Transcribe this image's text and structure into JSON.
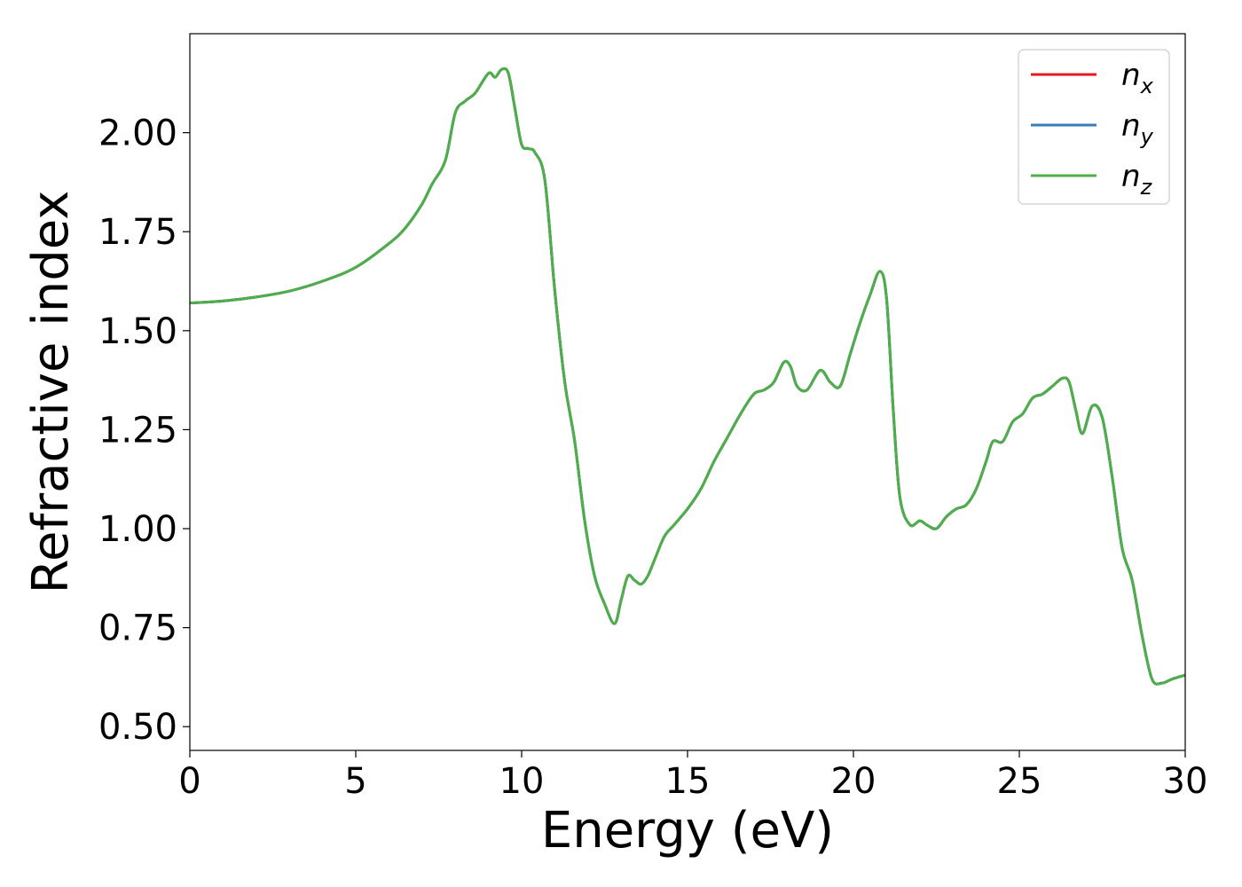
{
  "chart_data": {
    "type": "line",
    "xlabel": "Energy (eV)",
    "ylabel": "Refractive index",
    "xlim": [
      0,
      30
    ],
    "ylim": [
      0.44,
      2.25
    ],
    "xticks": [
      0,
      5,
      10,
      15,
      20,
      25,
      30
    ],
    "xtick_labels": [
      "0",
      "5",
      "10",
      "15",
      "20",
      "25",
      "30"
    ],
    "yticks": [
      0.5,
      0.75,
      1.0,
      1.25,
      1.5,
      1.75,
      2.0
    ],
    "ytick_labels": [
      "0.50",
      "0.75",
      "1.00",
      "1.25",
      "1.50",
      "1.75",
      "2.00"
    ],
    "grid": false,
    "legend_position": "top-right",
    "series": [
      {
        "name": "n",
        "subscript": "x",
        "color": "#e41a1c",
        "x": [
          0,
          1,
          2,
          3,
          4,
          5,
          6,
          6.5,
          7,
          7.3,
          7.7,
          8,
          8.3,
          8.6,
          9,
          9.2,
          9.4,
          9.6,
          9.8,
          10,
          10.2,
          10.4,
          10.7,
          11,
          11.3,
          11.6,
          11.9,
          12.2,
          12.5,
          12.8,
          13,
          13.2,
          13.4,
          13.6,
          13.8,
          14,
          14.3,
          14.6,
          15,
          15.4,
          15.8,
          16.2,
          16.6,
          17,
          17.3,
          17.6,
          17.9,
          18.1,
          18.3,
          18.6,
          19,
          19.3,
          19.6,
          19.9,
          20.2,
          20.5,
          20.8,
          21,
          21.2,
          21.4,
          21.7,
          22,
          22.2,
          22.5,
          22.8,
          23.1,
          23.4,
          23.7,
          24,
          24.2,
          24.5,
          24.8,
          25.1,
          25.4,
          25.7,
          26,
          26.3,
          26.5,
          26.7,
          26.9,
          27.2,
          27.5,
          27.8,
          28.1,
          28.4,
          28.7,
          29,
          29.3,
          29.6,
          30
        ],
        "values": [
          1.57,
          1.575,
          1.585,
          1.6,
          1.625,
          1.66,
          1.72,
          1.76,
          1.82,
          1.87,
          1.93,
          2.05,
          2.08,
          2.1,
          2.15,
          2.14,
          2.16,
          2.15,
          2.06,
          1.97,
          1.96,
          1.95,
          1.88,
          1.6,
          1.37,
          1.22,
          1.02,
          0.88,
          0.81,
          0.76,
          0.82,
          0.88,
          0.87,
          0.86,
          0.88,
          0.92,
          0.98,
          1.01,
          1.05,
          1.1,
          1.17,
          1.23,
          1.29,
          1.34,
          1.35,
          1.37,
          1.42,
          1.41,
          1.36,
          1.35,
          1.4,
          1.37,
          1.36,
          1.44,
          1.52,
          1.59,
          1.65,
          1.58,
          1.3,
          1.08,
          1.01,
          1.02,
          1.01,
          1.0,
          1.03,
          1.05,
          1.06,
          1.1,
          1.17,
          1.22,
          1.22,
          1.27,
          1.29,
          1.33,
          1.34,
          1.36,
          1.38,
          1.37,
          1.3,
          1.24,
          1.31,
          1.28,
          1.13,
          0.95,
          0.87,
          0.73,
          0.62,
          0.61,
          0.62,
          0.63
        ]
      },
      {
        "name": "n",
        "subscript": "y",
        "color": "#377eb8",
        "x": [
          0,
          1,
          2,
          3,
          4,
          5,
          6,
          6.5,
          7,
          7.3,
          7.7,
          8,
          8.3,
          8.6,
          9,
          9.2,
          9.4,
          9.6,
          9.8,
          10,
          10.2,
          10.4,
          10.7,
          11,
          11.3,
          11.6,
          11.9,
          12.2,
          12.5,
          12.8,
          13,
          13.2,
          13.4,
          13.6,
          13.8,
          14,
          14.3,
          14.6,
          15,
          15.4,
          15.8,
          16.2,
          16.6,
          17,
          17.3,
          17.6,
          17.9,
          18.1,
          18.3,
          18.6,
          19,
          19.3,
          19.6,
          19.9,
          20.2,
          20.5,
          20.8,
          21,
          21.2,
          21.4,
          21.7,
          22,
          22.2,
          22.5,
          22.8,
          23.1,
          23.4,
          23.7,
          24,
          24.2,
          24.5,
          24.8,
          25.1,
          25.4,
          25.7,
          26,
          26.3,
          26.5,
          26.7,
          26.9,
          27.2,
          27.5,
          27.8,
          28.1,
          28.4,
          28.7,
          29,
          29.3,
          29.6,
          30
        ],
        "values": [
          1.57,
          1.575,
          1.585,
          1.6,
          1.625,
          1.66,
          1.72,
          1.76,
          1.82,
          1.87,
          1.93,
          2.05,
          2.08,
          2.1,
          2.15,
          2.14,
          2.16,
          2.15,
          2.06,
          1.97,
          1.96,
          1.95,
          1.88,
          1.6,
          1.37,
          1.22,
          1.02,
          0.88,
          0.81,
          0.76,
          0.82,
          0.88,
          0.87,
          0.86,
          0.88,
          0.92,
          0.98,
          1.01,
          1.05,
          1.1,
          1.17,
          1.23,
          1.29,
          1.34,
          1.35,
          1.37,
          1.42,
          1.41,
          1.36,
          1.35,
          1.4,
          1.37,
          1.36,
          1.44,
          1.52,
          1.59,
          1.65,
          1.58,
          1.3,
          1.08,
          1.01,
          1.02,
          1.01,
          1.0,
          1.03,
          1.05,
          1.06,
          1.1,
          1.17,
          1.22,
          1.22,
          1.27,
          1.29,
          1.33,
          1.34,
          1.36,
          1.38,
          1.37,
          1.3,
          1.24,
          1.31,
          1.28,
          1.13,
          0.95,
          0.87,
          0.73,
          0.62,
          0.61,
          0.62,
          0.63
        ]
      },
      {
        "name": "n",
        "subscript": "z",
        "color": "#4daf4a",
        "x": [
          0,
          1,
          2,
          3,
          4,
          5,
          6,
          6.5,
          7,
          7.3,
          7.7,
          8,
          8.3,
          8.6,
          9,
          9.2,
          9.4,
          9.6,
          9.8,
          10,
          10.2,
          10.4,
          10.7,
          11,
          11.3,
          11.6,
          11.9,
          12.2,
          12.5,
          12.8,
          13,
          13.2,
          13.4,
          13.6,
          13.8,
          14,
          14.3,
          14.6,
          15,
          15.4,
          15.8,
          16.2,
          16.6,
          17,
          17.3,
          17.6,
          17.9,
          18.1,
          18.3,
          18.6,
          19,
          19.3,
          19.6,
          19.9,
          20.2,
          20.5,
          20.8,
          21,
          21.2,
          21.4,
          21.7,
          22,
          22.2,
          22.5,
          22.8,
          23.1,
          23.4,
          23.7,
          24,
          24.2,
          24.5,
          24.8,
          25.1,
          25.4,
          25.7,
          26,
          26.3,
          26.5,
          26.7,
          26.9,
          27.2,
          27.5,
          27.8,
          28.1,
          28.4,
          28.7,
          29,
          29.3,
          29.6,
          30
        ],
        "values": [
          1.57,
          1.575,
          1.585,
          1.6,
          1.625,
          1.66,
          1.72,
          1.76,
          1.82,
          1.87,
          1.93,
          2.05,
          2.08,
          2.1,
          2.15,
          2.14,
          2.16,
          2.15,
          2.06,
          1.97,
          1.96,
          1.95,
          1.88,
          1.6,
          1.37,
          1.22,
          1.02,
          0.88,
          0.81,
          0.76,
          0.82,
          0.88,
          0.87,
          0.86,
          0.88,
          0.92,
          0.98,
          1.01,
          1.05,
          1.1,
          1.17,
          1.23,
          1.29,
          1.34,
          1.35,
          1.37,
          1.42,
          1.41,
          1.36,
          1.35,
          1.4,
          1.37,
          1.36,
          1.44,
          1.52,
          1.59,
          1.65,
          1.58,
          1.3,
          1.08,
          1.01,
          1.02,
          1.01,
          1.0,
          1.03,
          1.05,
          1.06,
          1.1,
          1.17,
          1.22,
          1.22,
          1.27,
          1.29,
          1.33,
          1.34,
          1.36,
          1.38,
          1.37,
          1.3,
          1.24,
          1.31,
          1.28,
          1.13,
          0.95,
          0.87,
          0.73,
          0.62,
          0.61,
          0.62,
          0.63
        ]
      }
    ]
  }
}
